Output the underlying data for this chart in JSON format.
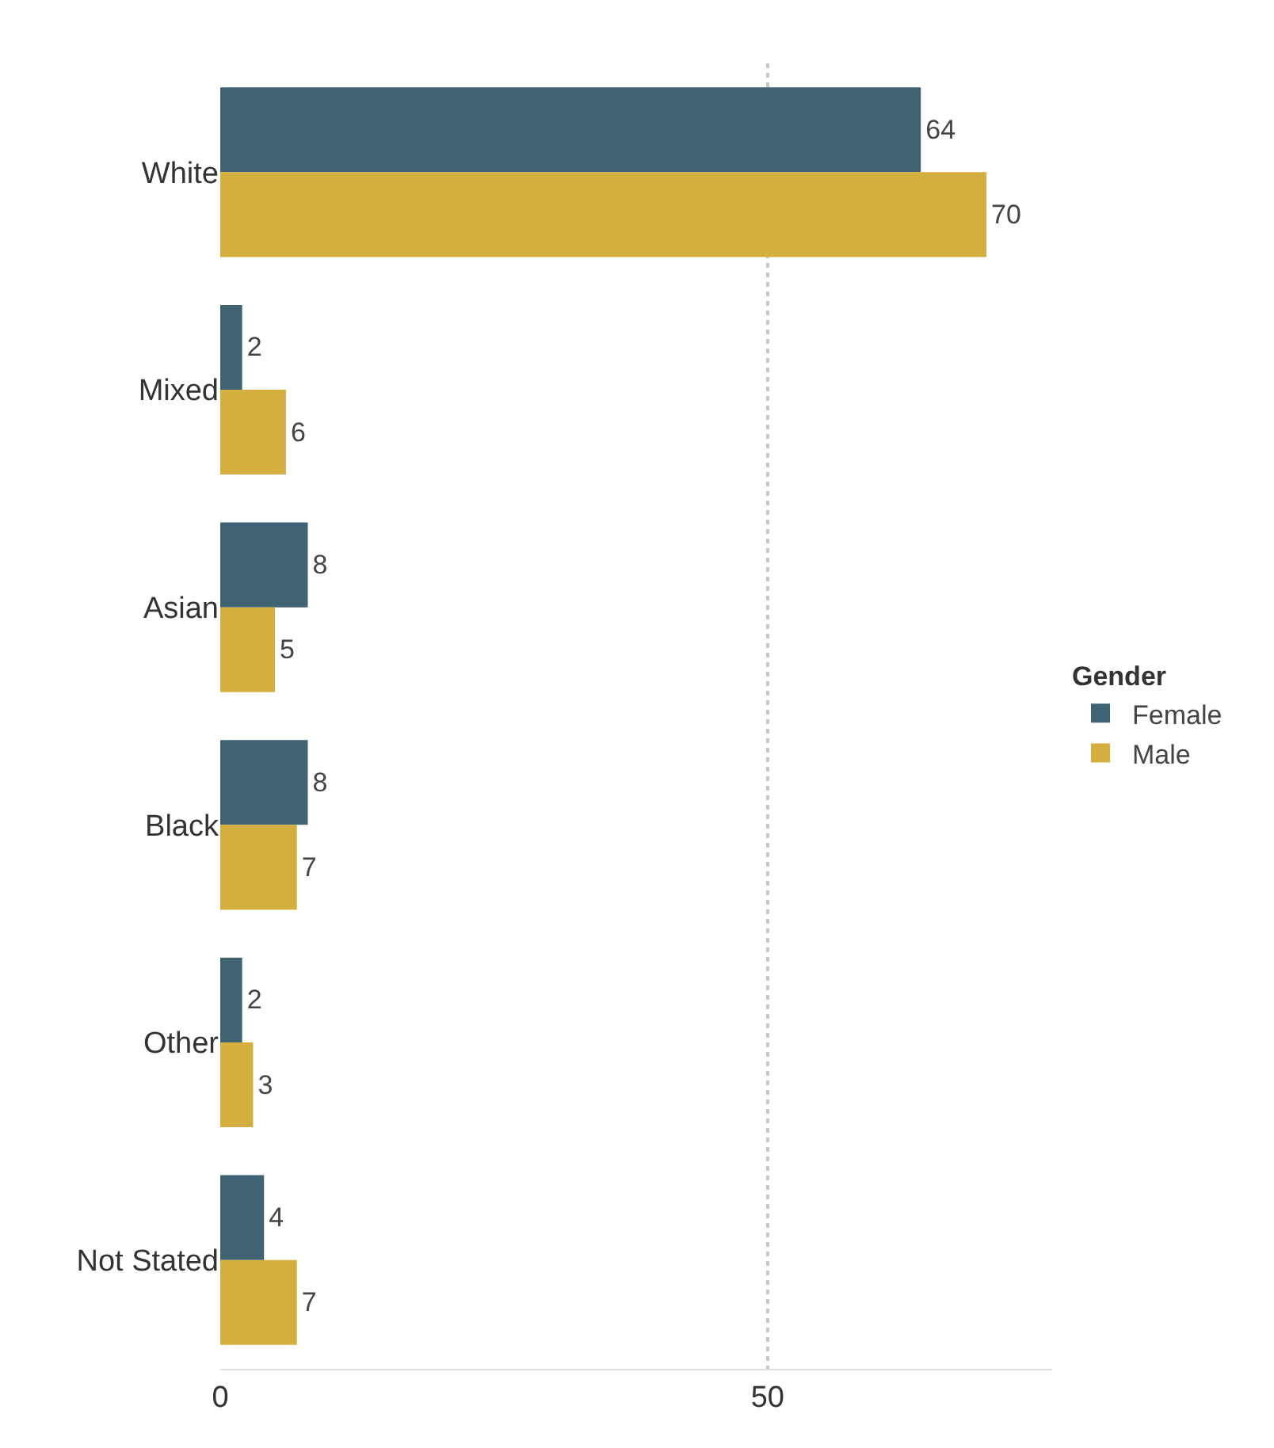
{
  "chart_data": {
    "type": "bar",
    "orientation": "horizontal",
    "categories": [
      "White",
      "Mixed",
      "Asian",
      "Black",
      "Other",
      "Not Stated"
    ],
    "series": [
      {
        "name": "Female",
        "color": "#3f6373",
        "values": [
          64,
          2,
          8,
          8,
          2,
          4
        ]
      },
      {
        "name": "Male",
        "color": "#d4af3f",
        "values": [
          70,
          6,
          5,
          7,
          3,
          7
        ]
      }
    ],
    "legend_title": "Gender",
    "legend": "right",
    "data_labels": true,
    "xlim": [
      0,
      76
    ],
    "xticks": [
      0,
      50
    ],
    "grid": "x"
  }
}
